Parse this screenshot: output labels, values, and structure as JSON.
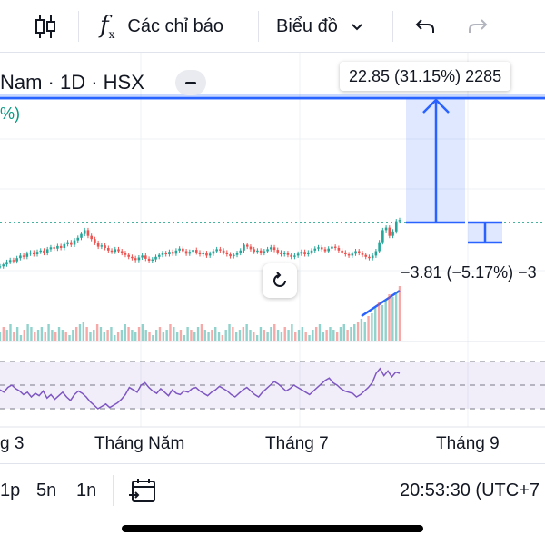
{
  "toolbar": {
    "indicators_label": "Các chỉ báo",
    "chart_type_label": "Biểu đồ"
  },
  "legend": {
    "symbol_title": "Nam · 1D · HSX",
    "sub_value": "%)"
  },
  "measure": {
    "up_label": "22.85 (31.15%) 2285",
    "down_label": "−3.81 (−5.17%) −3"
  },
  "xaxis": {
    "labels": [
      "g 3",
      "Tháng Năm",
      "Tháng 7",
      "Tháng 9"
    ]
  },
  "bottom_bar": {
    "range_1m": "1p",
    "range_5y": "5n",
    "range_1y": "1n",
    "time": "20:53:30 (UTC+7"
  },
  "colors": {
    "up": "#26a69a",
    "down": "#ef5350",
    "measure_blue": "#2962ff",
    "rsi": "#7e57c2"
  },
  "chart_data": {
    "type": "candlestick",
    "axis": "time",
    "x_tick_labels": [
      "g 3",
      "Tháng Năm",
      "Tháng 7",
      "Tháng 9"
    ],
    "series": [
      {
        "kind": "price-relative",
        "values": [
          0.1,
          0.4,
          0.8,
          1.1,
          0.9,
          1.4,
          1.8,
          1.6,
          2.1,
          2.3,
          2.0,
          2.4,
          2.6,
          2.2,
          2.8,
          3.1,
          2.9,
          3.3,
          3.0,
          3.6,
          3.9,
          3.5,
          4.2,
          4.6,
          5.2,
          5.8,
          4.9,
          4.4,
          3.8,
          3.2,
          3.4,
          3.0,
          2.6,
          2.4,
          2.8,
          2.5,
          2.2,
          1.9,
          1.6,
          1.4,
          1.1,
          1.5,
          1.8,
          1.3,
          1.0,
          1.2,
          1.6,
          1.9,
          2.2,
          2.0,
          2.4,
          2.1,
          2.6,
          2.9,
          2.5,
          2.1,
          2.4,
          2.7,
          2.3,
          2.0,
          2.2,
          1.8,
          2.1,
          2.5,
          2.8,
          2.6,
          2.3,
          2.0,
          1.7,
          1.9,
          2.2,
          2.6,
          3.5,
          3.2,
          2.8,
          2.4,
          2.6,
          2.2,
          2.5,
          2.8,
          3.1,
          2.7,
          2.3,
          2.0,
          2.2,
          1.9,
          1.6,
          1.8,
          2.1,
          2.4,
          2.0,
          2.3,
          2.6,
          2.9,
          3.1,
          2.8,
          2.5,
          2.9,
          3.2,
          3.0,
          2.6,
          2.3,
          2.0,
          1.8,
          2.1,
          2.5,
          2.2,
          1.9,
          1.6,
          1.4,
          1.8,
          2.5,
          3.9,
          5.8,
          6.2,
          4.9,
          5.6,
          7.2,
          7.4
        ]
      },
      {
        "kind": "volume",
        "values": [
          3,
          5,
          4,
          6,
          3,
          5,
          2,
          4,
          6,
          5,
          3,
          4,
          5,
          3,
          6,
          4,
          3,
          5,
          4,
          3,
          2,
          4,
          5,
          6,
          7,
          5,
          3,
          4,
          6,
          5,
          3,
          4,
          5,
          2,
          3,
          4,
          6,
          5,
          4,
          3,
          5,
          6,
          4,
          3,
          2,
          4,
          5,
          3,
          4,
          6,
          5,
          3,
          4,
          2,
          5,
          4,
          3,
          5,
          6,
          4,
          3,
          4,
          5,
          3,
          2,
          4,
          6,
          5,
          3,
          4,
          5,
          6,
          4,
          3,
          2,
          5,
          4,
          3,
          5,
          6,
          4,
          3,
          5,
          4,
          6,
          3,
          4,
          5,
          3,
          2,
          4,
          5,
          6,
          3,
          4,
          5,
          4,
          3,
          5,
          6,
          4,
          5,
          6,
          7,
          8,
          7,
          9,
          10,
          12,
          14,
          13,
          15,
          17,
          16,
          18,
          20
        ]
      },
      {
        "kind": "rsi",
        "values": [
          46,
          44,
          48,
          50,
          47,
          45,
          42,
          44,
          40,
          43,
          41,
          45,
          39,
          42,
          38,
          41,
          44,
          40,
          37,
          42,
          45,
          43,
          40,
          36,
          33,
          30,
          32,
          34,
          31,
          33,
          35,
          38,
          42,
          48,
          46,
          44,
          50,
          52,
          48,
          45,
          43,
          47,
          44,
          41,
          46,
          43,
          42,
          45,
          44,
          47,
          48,
          45,
          43,
          41,
          44,
          46,
          49,
          47,
          45,
          42,
          40,
          43,
          46,
          48,
          45,
          42,
          40,
          44,
          47,
          50,
          53,
          51,
          48,
          45,
          47,
          50,
          48,
          46,
          44,
          42,
          45,
          48,
          51,
          54,
          56,
          52,
          50,
          47,
          45,
          44,
          43,
          40,
          42,
          45,
          48,
          52,
          60,
          64,
          58,
          62,
          57,
          61,
          60
        ]
      }
    ],
    "measure_up": {
      "change": 22.85,
      "percent": 31.15,
      "ticks": 2285
    },
    "measure_down": {
      "change": -3.81,
      "percent": -5.17
    }
  }
}
